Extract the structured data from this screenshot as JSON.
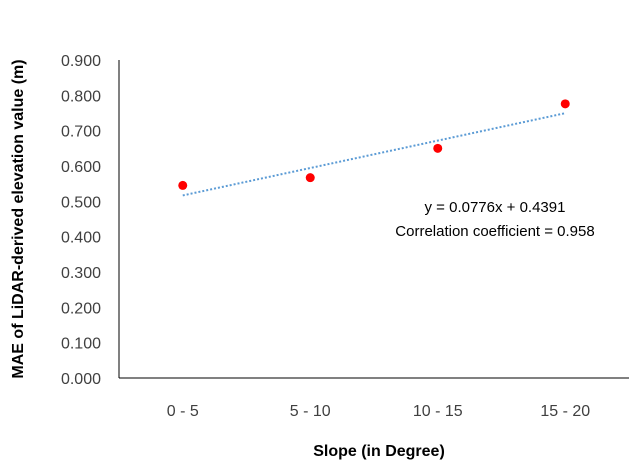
{
  "chart_data": {
    "type": "scatter",
    "categories": [
      "0 - 5",
      "5 - 10",
      "10 - 15",
      "15 - 20"
    ],
    "series": [
      {
        "values": [
          0.545,
          0.567,
          0.65,
          0.776
        ]
      }
    ],
    "trendline": {
      "type": "linear",
      "slope": 0.0776,
      "intercept": 0.4391
    },
    "annotations": [
      "y = 0.0776x + 0.4391",
      "Correlation coefficient = 0.958"
    ],
    "xlabel": "Slope (in Degree)",
    "ylabel": "MAE of LiDAR-derived elevation value (m)",
    "ylim": [
      0,
      0.9
    ],
    "yticks": [
      "0.000",
      "0.100",
      "0.200",
      "0.300",
      "0.400",
      "0.500",
      "0.600",
      "0.700",
      "0.800",
      "0.900"
    ],
    "grid": false,
    "legend": "none",
    "colors": {
      "points": "#ff0000",
      "trendline": "#5b9bd5",
      "axis": "#000000"
    }
  }
}
